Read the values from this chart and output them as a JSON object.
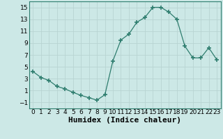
{
  "x": [
    0,
    1,
    2,
    3,
    4,
    5,
    6,
    7,
    8,
    9,
    10,
    11,
    12,
    13,
    14,
    15,
    16,
    17,
    18,
    19,
    20,
    21,
    22,
    23
  ],
  "y": [
    4.2,
    3.2,
    2.7,
    1.7,
    1.3,
    0.7,
    0.2,
    -0.2,
    -0.6,
    0.3,
    6.0,
    9.5,
    10.5,
    12.5,
    13.3,
    15.0,
    15.0,
    14.2,
    13.0,
    8.5,
    6.5,
    6.5,
    8.2,
    6.2
  ],
  "line_color": "#2e7d6e",
  "marker": "+",
  "marker_size": 4,
  "bg_color": "#cce8e6",
  "grid_color": "#b8d4d2",
  "xlabel": "Humidex (Indice chaleur)",
  "xlabel_fontsize": 8,
  "yticks": [
    -1,
    1,
    3,
    5,
    7,
    9,
    11,
    13,
    15
  ],
  "xticks": [
    0,
    1,
    2,
    3,
    4,
    5,
    6,
    7,
    8,
    9,
    10,
    11,
    12,
    13,
    14,
    15,
    16,
    17,
    18,
    19,
    20,
    21,
    22,
    23
  ],
  "ylim": [
    -2,
    16
  ],
  "xlim": [
    -0.5,
    23.5
  ],
  "tick_fontsize": 6.5
}
